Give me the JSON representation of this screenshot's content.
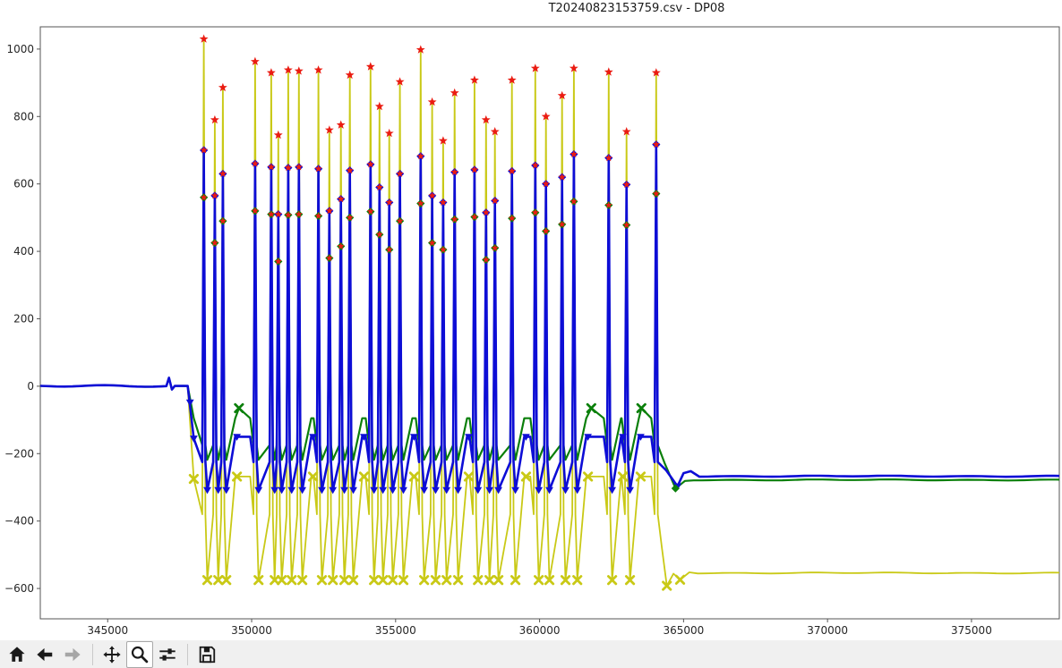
{
  "figure": {
    "title": "T20240823153759.csv - DP08"
  },
  "toolbar": {
    "buttons": [
      {
        "name": "home",
        "state": "enabled"
      },
      {
        "name": "back",
        "state": "enabled"
      },
      {
        "name": "forward",
        "state": "disabled"
      },
      {
        "name": "pan",
        "state": "enabled"
      },
      {
        "name": "zoom",
        "state": "active"
      },
      {
        "name": "configure-subplots",
        "state": "enabled"
      },
      {
        "name": "save",
        "state": "enabled"
      }
    ]
  },
  "chart_data": {
    "type": "line",
    "title": "T20240823153759.csv - DP08",
    "xlabel": "",
    "ylabel": "",
    "grid": false,
    "legend": "none",
    "xlim": [
      342660,
      378050
    ],
    "ylim": [
      -690,
      1066
    ],
    "xticks": [
      345000,
      350000,
      355000,
      360000,
      365000,
      370000,
      375000
    ],
    "xtick_labels": [
      "345000",
      "350000",
      "355000",
      "360000",
      "365000",
      "370000",
      "375000"
    ],
    "yticks": [
      -600,
      -400,
      -200,
      0,
      200,
      400,
      600,
      800,
      1000
    ],
    "ytick_labels": [
      "−600",
      "−400",
      "−200",
      "0",
      "200",
      "400",
      "600",
      "800",
      "1000"
    ],
    "series_meta": [
      {
        "name": "yellow-signal",
        "color": "#c9c916",
        "linewidth": 1.8
      },
      {
        "name": "green-signal",
        "color": "#0a7f0a",
        "linewidth": 2.2
      },
      {
        "name": "blue-signal",
        "color": "#0d0dd6",
        "linewidth": 2.6
      }
    ],
    "marker_colors": {
      "peak_star": "#ea1c12",
      "blue": "#0d0dd6",
      "green": "#0a7f0a",
      "yellow": "#c9c916"
    },
    "baseline": {
      "start_x": 342660,
      "value": 0,
      "blip": {
        "x": 347130,
        "up": 25,
        "down": -10
      },
      "end_x": 347780
    },
    "descent": {
      "x": 347990,
      "yellow": -275,
      "blue": -155,
      "green": -95
    },
    "descent_markers": {
      "blue": [
        [
          347860,
          -48
        ],
        [
          347990,
          -155
        ]
      ],
      "yellow": [
        [
          347990,
          -275
        ]
      ]
    },
    "levels": {
      "spike_halfwidth": 55,
      "trough_offset": 120,
      "plateau_offset": 430,
      "plateau_gap_threshold": 600,
      "base": {
        "yellow": -380,
        "blue": -225,
        "green": -175
      },
      "trough": {
        "yellow": -575,
        "blue": -308,
        "green": -218
      },
      "plateau": {
        "yellow": -268,
        "blue": -150,
        "green": -95
      },
      "green_hump": -65
    },
    "events": [
      {
        "x": 348340,
        "yellow": 1030,
        "blue": 700,
        "green": 560
      },
      {
        "x": 348720,
        "yellow": 790,
        "blue": 565,
        "green": 425
      },
      {
        "x": 349000,
        "yellow": 886,
        "blue": 630,
        "green": 490
      },
      {
        "x": 350120,
        "yellow": 963,
        "blue": 660,
        "green": 520
      },
      {
        "x": 350680,
        "yellow": 930,
        "blue": 650,
        "green": 510
      },
      {
        "x": 350925,
        "yellow": 745,
        "blue": 510,
        "green": 370
      },
      {
        "x": 351270,
        "yellow": 938,
        "blue": 648,
        "green": 508
      },
      {
        "x": 351640,
        "yellow": 935,
        "blue": 650,
        "green": 510
      },
      {
        "x": 352320,
        "yellow": 938,
        "blue": 645,
        "green": 505
      },
      {
        "x": 352700,
        "yellow": 760,
        "blue": 520,
        "green": 380
      },
      {
        "x": 353100,
        "yellow": 775,
        "blue": 555,
        "green": 415
      },
      {
        "x": 353410,
        "yellow": 923,
        "blue": 640,
        "green": 500
      },
      {
        "x": 354130,
        "yellow": 948,
        "blue": 658,
        "green": 518
      },
      {
        "x": 354440,
        "yellow": 830,
        "blue": 590,
        "green": 450
      },
      {
        "x": 354780,
        "yellow": 750,
        "blue": 545,
        "green": 405
      },
      {
        "x": 355150,
        "yellow": 903,
        "blue": 630,
        "green": 490
      },
      {
        "x": 355870,
        "yellow": 998,
        "blue": 682,
        "green": 542
      },
      {
        "x": 356270,
        "yellow": 843,
        "blue": 565,
        "green": 425
      },
      {
        "x": 356650,
        "yellow": 728,
        "blue": 545,
        "green": 405
      },
      {
        "x": 357050,
        "yellow": 870,
        "blue": 635,
        "green": 495
      },
      {
        "x": 357740,
        "yellow": 908,
        "blue": 642,
        "green": 502
      },
      {
        "x": 358140,
        "yellow": 790,
        "blue": 515,
        "green": 375
      },
      {
        "x": 358450,
        "yellow": 755,
        "blue": 550,
        "green": 410
      },
      {
        "x": 359040,
        "yellow": 908,
        "blue": 638,
        "green": 498
      },
      {
        "x": 359850,
        "yellow": 943,
        "blue": 655,
        "green": 515
      },
      {
        "x": 360220,
        "yellow": 800,
        "blue": 600,
        "green": 460
      },
      {
        "x": 360780,
        "yellow": 862,
        "blue": 620,
        "green": 480
      },
      {
        "x": 361190,
        "yellow": 943,
        "blue": 688,
        "green": 548
      },
      {
        "x": 362400,
        "yellow": 932,
        "blue": 677,
        "green": 537
      },
      {
        "x": 363020,
        "yellow": 755,
        "blue": 598,
        "green": 478
      },
      {
        "x": 364050,
        "yellow": 930,
        "blue": 717,
        "green": 571
      }
    ],
    "tail": {
      "yellow": [
        [
          364250,
          -480
        ],
        [
          364420,
          -592
        ],
        [
          364650,
          -556
        ],
        [
          364880,
          -574
        ],
        [
          365200,
          -552
        ],
        [
          378050,
          -554
        ]
      ],
      "blue": [
        [
          364400,
          -250
        ],
        [
          364790,
          -297
        ],
        [
          365000,
          -258
        ],
        [
          365250,
          -252
        ],
        [
          378050,
          -267
        ]
      ],
      "green": [
        [
          364350,
          -230
        ],
        [
          364720,
          -303
        ],
        [
          365050,
          -281
        ],
        [
          378050,
          -278
        ]
      ]
    },
    "end_values": {
      "blue": -267,
      "green": -278,
      "yellow": -554
    }
  }
}
